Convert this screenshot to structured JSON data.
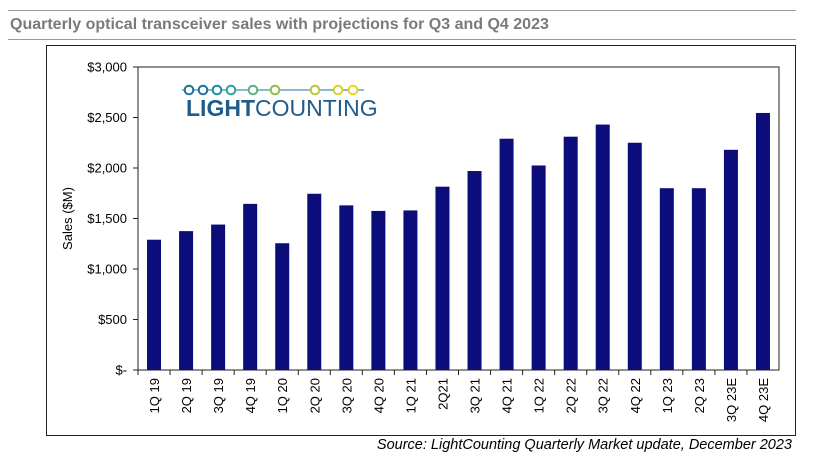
{
  "title": "Quarterly optical transceiver sales with projections for Q3 and Q4 2023",
  "source": "Source: LightCounting Quarterly Market update, December 2023",
  "logo": {
    "text_light": "LIGHT",
    "text_counting": "COUNTING"
  },
  "colors": {
    "bar": "#0d0d7a",
    "title": "#7a7a7a",
    "logo_blue": "#1f5b8c"
  },
  "chart_data": {
    "type": "bar",
    "title": "",
    "xlabel": "",
    "ylabel": "Sales ($M)",
    "ylim": [
      0,
      3000
    ],
    "yticks": [
      0,
      500,
      1000,
      1500,
      2000,
      2500,
      3000
    ],
    "ytick_labels": [
      "$-",
      "$500",
      "$1,000",
      "$1,500",
      "$2,000",
      "$2,500",
      "$3,000"
    ],
    "categories": [
      "1Q 19",
      "2Q 19",
      "3Q 19",
      "4Q 19",
      "1Q 20",
      "2Q 20",
      "3Q 20",
      "4Q 20",
      "1Q 21",
      "2Q21",
      "3Q 21",
      "4Q 21",
      "1Q 22",
      "2Q 22",
      "3Q 22",
      "4Q 22",
      "1Q 23",
      "2Q 23",
      "3Q 23E",
      "4Q 23E"
    ],
    "values": [
      1290,
      1375,
      1440,
      1645,
      1255,
      1745,
      1630,
      1575,
      1580,
      1815,
      1970,
      2290,
      2025,
      2310,
      2430,
      2250,
      1800,
      1800,
      2180,
      2545
    ],
    "grid": false,
    "legend": "none"
  }
}
